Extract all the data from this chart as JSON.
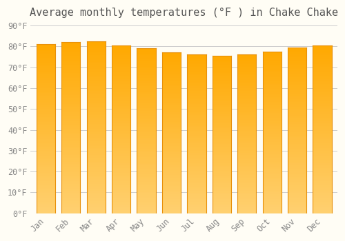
{
  "title": "Average monthly temperatures (°F ) in Chake Chake",
  "months": [
    "Jan",
    "Feb",
    "Mar",
    "Apr",
    "May",
    "Jun",
    "Jul",
    "Aug",
    "Sep",
    "Oct",
    "Nov",
    "Dec"
  ],
  "values": [
    81,
    82,
    82.5,
    80.5,
    79,
    77,
    76,
    75.5,
    76,
    77.5,
    79.5,
    80.5
  ],
  "bar_color_top": "#FFA800",
  "bar_color_bottom": "#FFD070",
  "bar_edge_color": "#E8900A",
  "background_color": "#FFFDF5",
  "grid_color": "#CCCCCC",
  "ylim": [
    0,
    90
  ],
  "yticks": [
    0,
    10,
    20,
    30,
    40,
    50,
    60,
    70,
    80,
    90
  ],
  "ytick_labels": [
    "0°F",
    "10°F",
    "20°F",
    "30°F",
    "40°F",
    "50°F",
    "60°F",
    "70°F",
    "80°F",
    "90°F"
  ],
  "title_fontsize": 11,
  "tick_fontsize": 8.5,
  "title_color": "#555555",
  "tick_color": "#888888",
  "bar_width": 0.75,
  "figsize": [
    5.0,
    3.5
  ],
  "dpi": 100
}
